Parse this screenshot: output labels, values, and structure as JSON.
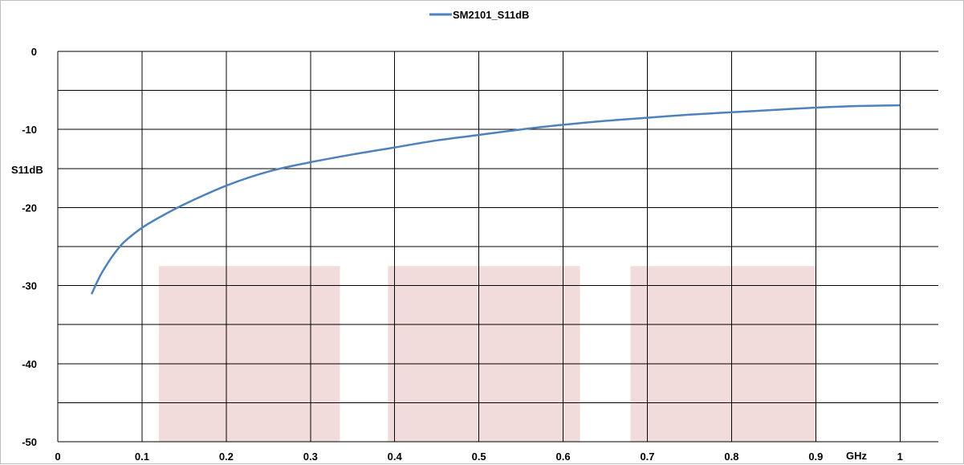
{
  "chart_data": {
    "type": "line",
    "title": "",
    "xlabel": "GHz",
    "ylabel": "S11dB",
    "xlim": [
      0,
      1.0
    ],
    "ylim": [
      -50,
      0
    ],
    "x_ticks": [
      0,
      0.1,
      0.2,
      0.3,
      0.4,
      0.5,
      0.6,
      0.7,
      0.8,
      0.9,
      1
    ],
    "x_tick_labels": [
      "0",
      "0.1",
      "0.2",
      "0.3",
      "0.4",
      "0.5",
      "0.6",
      "0.7",
      "0.8",
      "0.9",
      "1"
    ],
    "y_label_ticks": [
      0,
      -10,
      -20,
      -30,
      -40,
      -50
    ],
    "y_gridlines": [
      0,
      -5,
      -10,
      -15,
      -20,
      -25,
      -30,
      -35,
      -40,
      -45,
      -50
    ],
    "grid": true,
    "legend": {
      "position": "top-center"
    },
    "series": [
      {
        "name": "SM2101_S11dB",
        "color": "#4f81bd",
        "x": [
          0.04,
          0.05,
          0.06,
          0.07,
          0.08,
          0.1,
          0.12,
          0.15,
          0.2,
          0.25,
          0.3,
          0.35,
          0.4,
          0.45,
          0.5,
          0.55,
          0.6,
          0.65,
          0.7,
          0.75,
          0.8,
          0.85,
          0.9,
          0.95,
          1.0
        ],
        "y": [
          -31.1,
          -28.8,
          -27.0,
          -25.5,
          -24.3,
          -22.6,
          -21.3,
          -19.6,
          -17.2,
          -15.4,
          -14.2,
          -13.2,
          -12.3,
          -11.4,
          -10.7,
          -10.0,
          -9.4,
          -8.9,
          -8.5,
          -8.1,
          -7.8,
          -7.5,
          -7.2,
          -7.0,
          -6.9
        ]
      }
    ],
    "shaded_bands": [
      {
        "x_start": 0.12,
        "x_end": 0.335,
        "y_top": -27.5,
        "y_bottom": -50,
        "color": "#f2dcdb"
      },
      {
        "x_start": 0.392,
        "x_end": 0.62,
        "y_top": -27.5,
        "y_bottom": -50,
        "color": "#f2dcdb"
      },
      {
        "x_start": 0.68,
        "x_end": 0.9,
        "y_top": -27.5,
        "y_bottom": -50,
        "color": "#f2dcdb"
      }
    ]
  }
}
